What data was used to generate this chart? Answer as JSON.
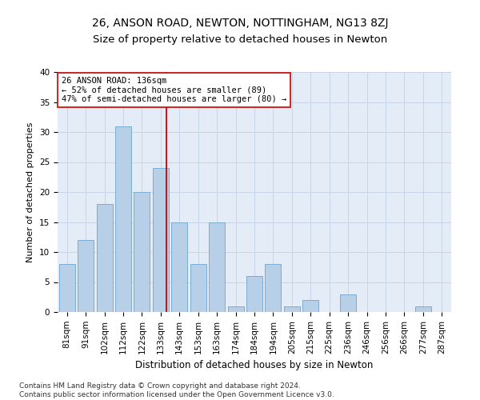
{
  "title1": "26, ANSON ROAD, NEWTON, NOTTINGHAM, NG13 8ZJ",
  "title2": "Size of property relative to detached houses in Newton",
  "xlabel": "Distribution of detached houses by size in Newton",
  "ylabel": "Number of detached properties",
  "categories": [
    "81sqm",
    "91sqm",
    "102sqm",
    "112sqm",
    "122sqm",
    "133sqm",
    "143sqm",
    "153sqm",
    "163sqm",
    "174sqm",
    "184sqm",
    "194sqm",
    "205sqm",
    "215sqm",
    "225sqm",
    "236sqm",
    "246sqm",
    "256sqm",
    "266sqm",
    "277sqm",
    "287sqm"
  ],
  "values": [
    8,
    12,
    18,
    31,
    20,
    24,
    15,
    8,
    15,
    1,
    6,
    8,
    1,
    2,
    0,
    3,
    0,
    0,
    0,
    1,
    0
  ],
  "bar_color": "#b8cfe8",
  "bar_edge_color": "#7aadd4",
  "vline_x": 5.3,
  "vline_color": "#cc0000",
  "annotation_text": "26 ANSON ROAD: 136sqm\n← 52% of detached houses are smaller (89)\n47% of semi-detached houses are larger (80) →",
  "annotation_box_color": "#ffffff",
  "annotation_box_edge": "#cc0000",
  "ylim": [
    0,
    40
  ],
  "yticks": [
    0,
    5,
    10,
    15,
    20,
    25,
    30,
    35,
    40
  ],
  "grid_color": "#c8d4e8",
  "background_color": "#e4ecf7",
  "footer_text": "Contains HM Land Registry data © Crown copyright and database right 2024.\nContains public sector information licensed under the Open Government Licence v3.0.",
  "title1_fontsize": 10,
  "title2_fontsize": 9.5,
  "xlabel_fontsize": 8.5,
  "ylabel_fontsize": 8,
  "tick_fontsize": 7.5,
  "annotation_fontsize": 7.5,
  "footer_fontsize": 6.5
}
